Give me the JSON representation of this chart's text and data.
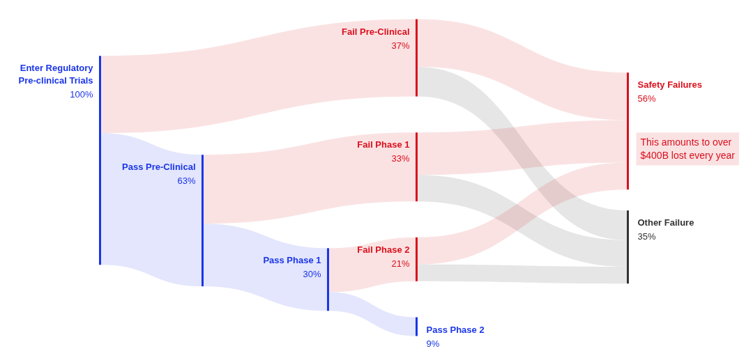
{
  "chart_data": {
    "type": "other",
    "categories": [
      "Enter Regulatory Pre-clinical Trials",
      "Pass Pre-Clinical",
      "Fail Pre-Clinical",
      "Pass Phase 1",
      "Fail Phase 1",
      "Fail Phase 2",
      "Pass Phase 2",
      "Safety Failures",
      "Other Failure"
    ],
    "values": [
      100,
      63,
      37,
      30,
      33,
      21,
      9,
      56,
      35
    ],
    "value_labels": [
      "100%",
      "63%",
      "37%",
      "30%",
      "33%",
      "21%",
      "9%",
      "56%",
      "35%"
    ],
    "colors": [
      "#1a35e8",
      "#1a35e8",
      "#d9101c",
      "#1a35e8",
      "#d9101c",
      "#d9101c",
      "#1a35e8",
      "#d9101c",
      "#333333"
    ],
    "cells": [
      [
        null,
        true,
        true,
        null,
        null,
        null,
        null,
        null,
        null
      ],
      [
        null,
        null,
        null,
        true,
        true,
        null,
        null,
        null,
        null
      ],
      [
        null,
        null,
        null,
        null,
        null,
        null,
        null,
        true,
        true
      ],
      [
        null,
        null,
        null,
        null,
        null,
        true,
        true,
        null,
        null
      ],
      [
        null,
        null,
        null,
        null,
        null,
        null,
        null,
        true,
        true
      ],
      [
        null,
        null,
        null,
        null,
        null,
        null,
        null,
        true,
        true
      ],
      [
        null,
        null,
        null,
        null,
        null,
        null,
        null,
        null,
        null
      ],
      [
        null,
        null,
        null,
        null,
        null,
        null,
        null,
        null,
        null
      ],
      [
        null,
        null,
        null,
        null,
        null,
        null,
        null,
        null,
        null
      ]
    ],
    "annotations": [
      "This amounts to over $400B lost every year"
    ]
  }
}
